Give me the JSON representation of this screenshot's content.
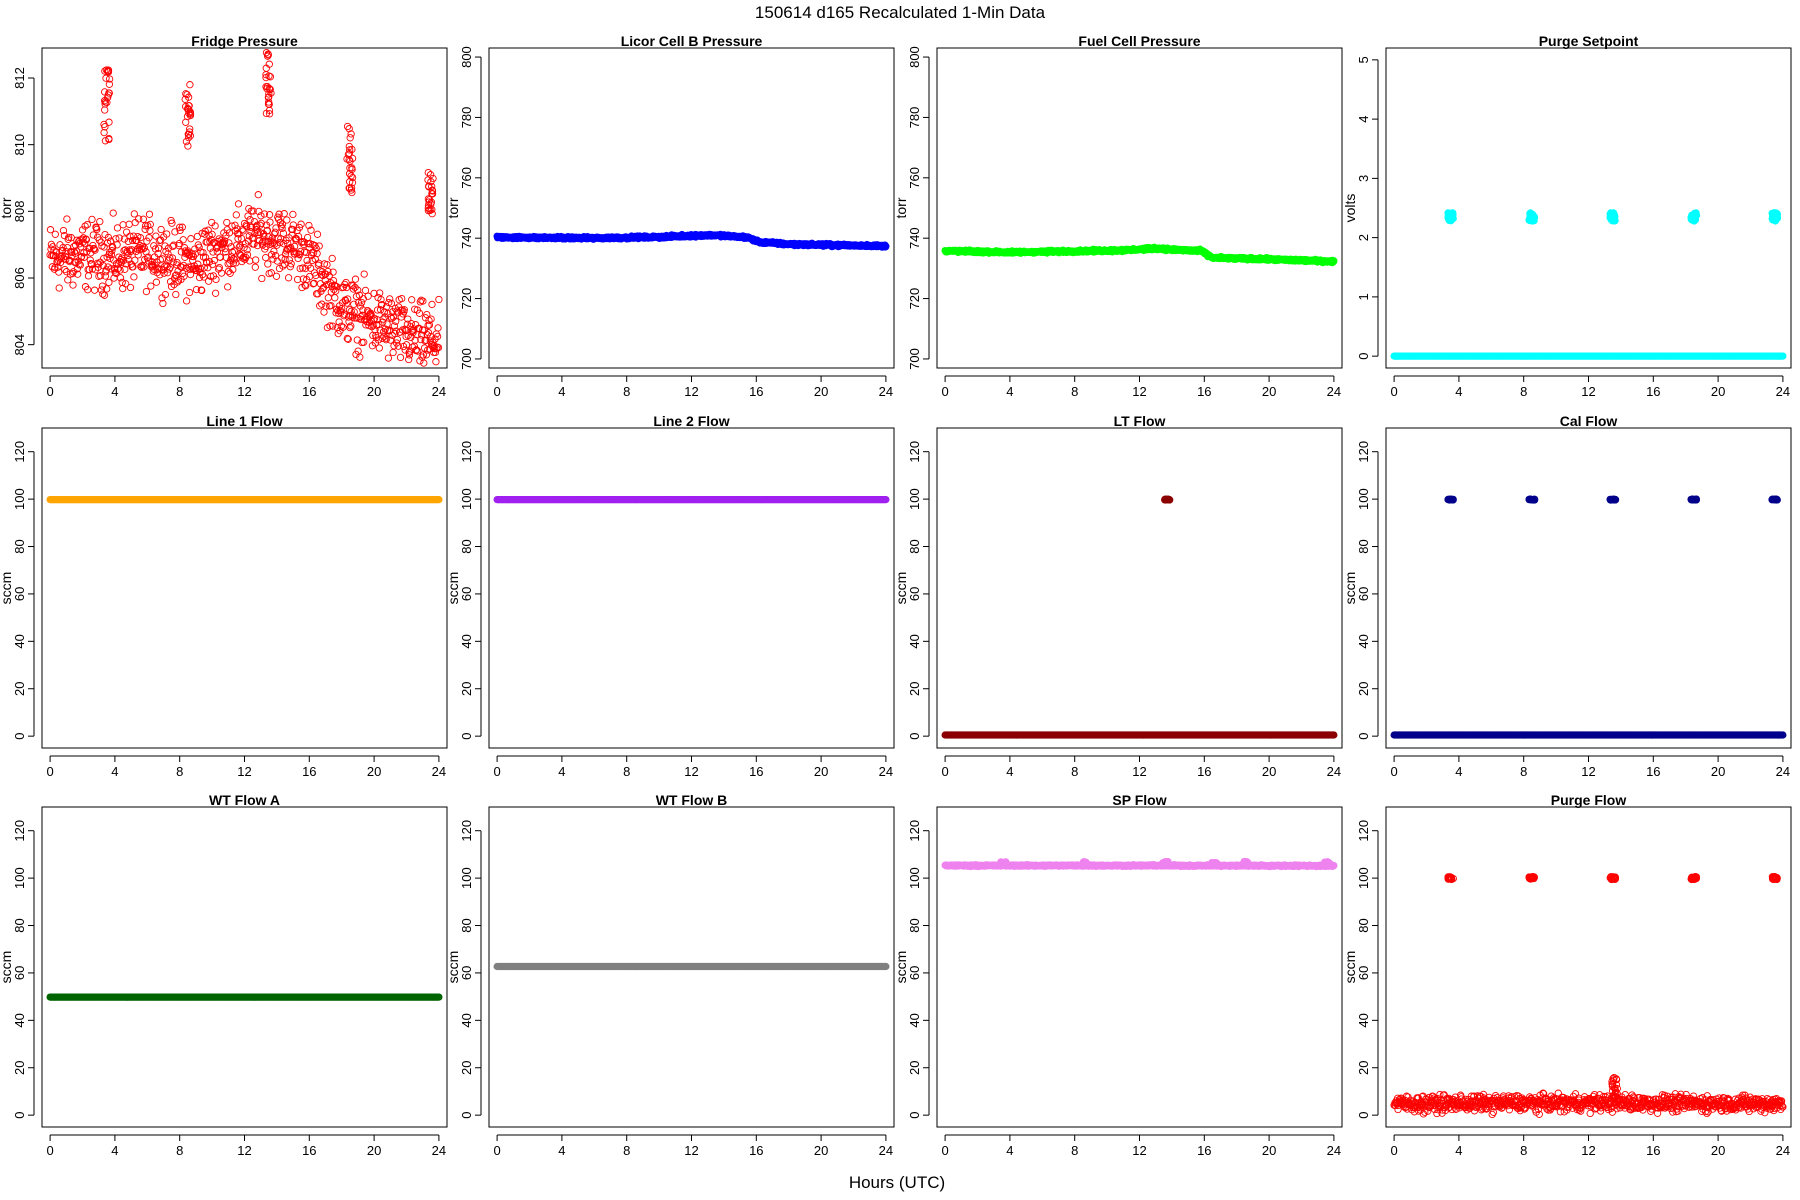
{
  "figure": {
    "title": "150614   d165   Recalculated 1-Min Data",
    "xlabel": "Hours (UTC)"
  },
  "chart_data": [
    {
      "type": "scatter",
      "title": "Fridge Pressure",
      "xlabel": "",
      "ylabel": "torr",
      "xlim": [
        0,
        24
      ],
      "ylim": [
        803.3,
        812.9
      ],
      "xticks": [
        0,
        4,
        8,
        12,
        16,
        20,
        24
      ],
      "yticks": [
        804,
        806,
        808,
        810,
        812
      ],
      "color": "#ff0000",
      "marker": "open-circle",
      "series": [
        {
          "baseline": [
            [
              0,
              806.6
            ],
            [
              2,
              806.7
            ],
            [
              4,
              806.6
            ],
            [
              6,
              806.8
            ],
            [
              8,
              806.5
            ],
            [
              9,
              806.4
            ],
            [
              10,
              806.8
            ],
            [
              12,
              807.1
            ],
            [
              13,
              807.3
            ],
            [
              14,
              807.1
            ],
            [
              15,
              807.0
            ],
            [
              16,
              806.6
            ],
            [
              17,
              805.8
            ],
            [
              18,
              805.1
            ],
            [
              19,
              804.9
            ],
            [
              20,
              804.7
            ],
            [
              22,
              804.3
            ],
            [
              24,
              804.1
            ]
          ],
          "noise": 0.75,
          "bursts": [
            {
              "x": 3.5,
              "y": [
                810.1,
                812.3
              ]
            },
            {
              "x": 8.5,
              "y": [
                809.8,
                811.8
              ]
            },
            {
              "x": 13.5,
              "y": [
                810.9,
                812.8
              ]
            },
            {
              "x": 18.5,
              "y": [
                808.5,
                810.6
              ]
            },
            {
              "x": 23.5,
              "y": [
                807.8,
                809.2
              ]
            }
          ]
        }
      ]
    },
    {
      "type": "scatter",
      "title": "Licor Cell B Pressure",
      "xlabel": "",
      "ylabel": "torr",
      "xlim": [
        0,
        24
      ],
      "ylim": [
        697,
        803
      ],
      "xticks": [
        0,
        4,
        8,
        12,
        16,
        20,
        24
      ],
      "yticks": [
        700,
        720,
        740,
        760,
        780,
        800
      ],
      "color": "#0000ff",
      "marker": "filled",
      "series": [
        {
          "baseline": [
            [
              0,
              740.3
            ],
            [
              6,
              740.0
            ],
            [
              10,
              740.4
            ],
            [
              13,
              741.0
            ],
            [
              14,
              740.8
            ],
            [
              15.5,
              740.2
            ],
            [
              16.2,
              738.7
            ],
            [
              18,
              738.0
            ],
            [
              20,
              737.8
            ],
            [
              24,
              737.4
            ]
          ],
          "noise": 0.3,
          "bursts": []
        }
      ]
    },
    {
      "type": "scatter",
      "title": "Fuel Cell Pressure",
      "xlabel": "",
      "ylabel": "torr",
      "xlim": [
        0,
        24
      ],
      "ylim": [
        697,
        803
      ],
      "xticks": [
        0,
        4,
        8,
        12,
        16,
        20,
        24
      ],
      "yticks": [
        700,
        720,
        740,
        760,
        780,
        800
      ],
      "color": "#00ff00",
      "marker": "filled",
      "series": [
        {
          "baseline": [
            [
              0,
              735.8
            ],
            [
              4,
              735.3
            ],
            [
              8,
              735.7
            ],
            [
              11,
              736.0
            ],
            [
              13,
              736.6
            ],
            [
              14,
              736.2
            ],
            [
              15.8,
              735.8
            ],
            [
              16.5,
              733.5
            ],
            [
              20,
              733.0
            ],
            [
              24,
              732.3
            ]
          ],
          "noise": 0.3,
          "bursts": []
        }
      ]
    },
    {
      "type": "scatter",
      "title": "Purge Setpoint",
      "xlabel": "",
      "ylabel": "volts",
      "xlim": [
        0,
        24
      ],
      "ylim": [
        -0.2,
        5.2
      ],
      "xticks": [
        0,
        4,
        8,
        12,
        16,
        20,
        24
      ],
      "yticks": [
        0,
        1,
        2,
        3,
        4,
        5
      ],
      "color": "#00ffff",
      "marker": "filled",
      "series": [
        {
          "baseline": [
            [
              0,
              0
            ],
            [
              24,
              0
            ]
          ],
          "noise": 0,
          "bursts": [
            {
              "x": 3.5,
              "y": [
                2.28,
                2.42
              ]
            },
            {
              "x": 8.5,
              "y": [
                2.28,
                2.42
              ]
            },
            {
              "x": 13.5,
              "y": [
                2.28,
                2.42
              ]
            },
            {
              "x": 18.5,
              "y": [
                2.28,
                2.42
              ]
            },
            {
              "x": 23.5,
              "y": [
                2.28,
                2.42
              ]
            }
          ]
        }
      ]
    },
    {
      "type": "scatter",
      "title": "Line 1 Flow",
      "xlabel": "",
      "ylabel": "sccm",
      "xlim": [
        0,
        24
      ],
      "ylim": [
        -5,
        130
      ],
      "xticks": [
        0,
        4,
        8,
        12,
        16,
        20,
        24
      ],
      "yticks": [
        0,
        20,
        40,
        60,
        80,
        100,
        120
      ],
      "color": "#ffa500",
      "marker": "filled",
      "series": [
        {
          "baseline": [
            [
              0,
              99.8
            ],
            [
              24,
              99.8
            ]
          ],
          "noise": 0,
          "bursts": []
        }
      ]
    },
    {
      "type": "scatter",
      "title": "Line 2 Flow",
      "xlabel": "",
      "ylabel": "sccm",
      "xlim": [
        0,
        24
      ],
      "ylim": [
        -5,
        130
      ],
      "xticks": [
        0,
        4,
        8,
        12,
        16,
        20,
        24
      ],
      "yticks": [
        0,
        20,
        40,
        60,
        80,
        100,
        120
      ],
      "color": "#a020f0",
      "marker": "filled",
      "series": [
        {
          "baseline": [
            [
              0,
              99.8
            ],
            [
              24,
              99.8
            ]
          ],
          "noise": 0,
          "bursts": []
        }
      ]
    },
    {
      "type": "scatter",
      "title": "LT Flow",
      "xlabel": "",
      "ylabel": "sccm",
      "xlim": [
        0,
        24
      ],
      "ylim": [
        -5,
        130
      ],
      "xticks": [
        0,
        4,
        8,
        12,
        16,
        20,
        24
      ],
      "yticks": [
        0,
        20,
        40,
        60,
        80,
        100,
        120
      ],
      "color": "#8b0000",
      "marker": "filled",
      "series": [
        {
          "baseline": [
            [
              0,
              0.5
            ],
            [
              24,
              0.5
            ]
          ],
          "noise": 0,
          "bursts": [
            {
              "x": 13.7,
              "y": [
                99.6,
                100.0
              ]
            }
          ]
        }
      ]
    },
    {
      "type": "scatter",
      "title": "Cal Flow",
      "xlabel": "",
      "ylabel": "sccm",
      "xlim": [
        0,
        24
      ],
      "ylim": [
        -5,
        130
      ],
      "xticks": [
        0,
        4,
        8,
        12,
        16,
        20,
        24
      ],
      "yticks": [
        0,
        20,
        40,
        60,
        80,
        100,
        120
      ],
      "color": "#00008b",
      "marker": "filled",
      "series": [
        {
          "baseline": [
            [
              0,
              0.5
            ],
            [
              24,
              0.5
            ]
          ],
          "noise": 0,
          "bursts": [
            {
              "x": 3.5,
              "y": [
                99.6,
                100.0
              ]
            },
            {
              "x": 8.5,
              "y": [
                99.6,
                100.0
              ]
            },
            {
              "x": 13.5,
              "y": [
                99.6,
                100.0
              ]
            },
            {
              "x": 18.5,
              "y": [
                99.6,
                100.0
              ]
            },
            {
              "x": 23.5,
              "y": [
                99.6,
                100.0
              ]
            }
          ]
        }
      ]
    },
    {
      "type": "scatter",
      "title": "WT Flow A",
      "xlabel": "",
      "ylabel": "sccm",
      "xlim": [
        0,
        24
      ],
      "ylim": [
        -5,
        130
      ],
      "xticks": [
        0,
        4,
        8,
        12,
        16,
        20,
        24
      ],
      "yticks": [
        0,
        20,
        40,
        60,
        80,
        100,
        120
      ],
      "color": "#006400",
      "marker": "filled",
      "series": [
        {
          "baseline": [
            [
              0,
              49.8
            ],
            [
              24,
              49.8
            ]
          ],
          "noise": 0,
          "bursts": []
        }
      ]
    },
    {
      "type": "scatter",
      "title": "WT Flow B",
      "xlabel": "",
      "ylabel": "sccm",
      "xlim": [
        0,
        24
      ],
      "ylim": [
        -5,
        130
      ],
      "xticks": [
        0,
        4,
        8,
        12,
        16,
        20,
        24
      ],
      "yticks": [
        0,
        20,
        40,
        60,
        80,
        100,
        120
      ],
      "color": "#808080",
      "marker": "filled",
      "series": [
        {
          "baseline": [
            [
              0,
              62.7
            ],
            [
              24,
              62.7
            ]
          ],
          "noise": 0,
          "bursts": []
        }
      ]
    },
    {
      "type": "scatter",
      "title": "SP Flow",
      "xlabel": "",
      "ylabel": "sccm",
      "xlim": [
        0,
        24
      ],
      "ylim": [
        -5,
        130
      ],
      "xticks": [
        0,
        4,
        8,
        12,
        16,
        20,
        24
      ],
      "yticks": [
        0,
        20,
        40,
        60,
        80,
        100,
        120
      ],
      "color": "#ee82ee",
      "marker": "filled",
      "series": [
        {
          "baseline": [
            [
              0,
              105.3
            ],
            [
              12,
              105.3
            ],
            [
              24,
              105.2
            ]
          ],
          "noise": 0.25,
          "bursts": [
            {
              "x": 3.6,
              "y": [
                105.3,
                107.0
              ]
            },
            {
              "x": 8.6,
              "y": [
                105.3,
                107.0
              ]
            },
            {
              "x": 13.6,
              "y": [
                105.3,
                107.0
              ]
            },
            {
              "x": 16.6,
              "y": [
                105.3,
                106.6
              ]
            },
            {
              "x": 18.6,
              "y": [
                105.3,
                107.0
              ]
            },
            {
              "x": 23.6,
              "y": [
                105.3,
                107.0
              ]
            }
          ]
        }
      ]
    },
    {
      "type": "scatter",
      "title": "Purge Flow",
      "xlabel": "",
      "ylabel": "sccm",
      "xlim": [
        0,
        24
      ],
      "ylim": [
        -5,
        130
      ],
      "xticks": [
        0,
        4,
        8,
        12,
        16,
        20,
        24
      ],
      "yticks": [
        0,
        20,
        40,
        60,
        80,
        100,
        120
      ],
      "color": "#ff0000",
      "marker": "open-circle",
      "series": [
        {
          "baseline": [
            [
              0,
              4.8
            ],
            [
              12,
              5.2
            ],
            [
              24,
              4.8
            ]
          ],
          "noise": 2.5,
          "bursts": [
            {
              "x": 3.5,
              "y": [
                99.4,
                100.6
              ]
            },
            {
              "x": 8.5,
              "y": [
                99.4,
                100.6
              ]
            },
            {
              "x": 13.5,
              "y": [
                99.4,
                100.6
              ]
            },
            {
              "x": 13.6,
              "y": [
                7.0,
                16.0
              ]
            },
            {
              "x": 18.5,
              "y": [
                99.4,
                100.6
              ]
            },
            {
              "x": 23.5,
              "y": [
                99.4,
                100.6
              ]
            }
          ]
        }
      ]
    }
  ]
}
